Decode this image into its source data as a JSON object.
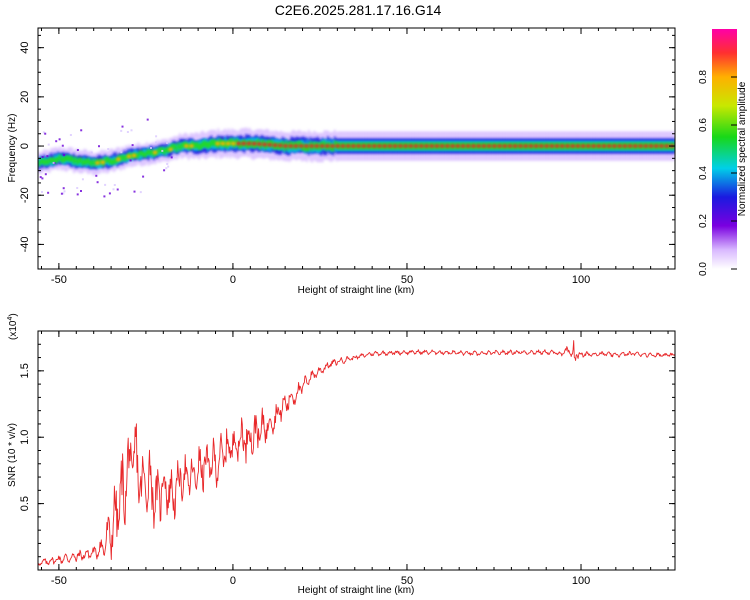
{
  "title": "C2E6.2025.281.17.16.G14",
  "colors": {
    "snr_line": "#e8282a",
    "spectral_core": "#e8282a",
    "spectral_mid": "#22d822",
    "spectral_low": "#1a1ae0",
    "spectral_fringe": "#c9a2ff",
    "axis": "#000000"
  },
  "chart_data": [
    {
      "type": "heatmap",
      "name": "spectrogram",
      "xlabel": "Height of straight line (km)",
      "ylabel": "Frequency (Hz)",
      "xlim": [
        -56,
        127
      ],
      "ylim": [
        -50,
        48
      ],
      "x_ticks": [
        -50,
        0,
        50,
        100
      ],
      "y_ticks": [
        -40,
        -20,
        0,
        20,
        40
      ],
      "grid": false,
      "colorbar": {
        "label": "Normalized spectral amplitude",
        "range": [
          0,
          1
        ],
        "ticks": [
          "0.0",
          "0.2",
          "0.4",
          "0.6",
          "0.8"
        ],
        "colormap": "rainbow (white-violet-blue-cyan-green-yellow-orange-red)"
      },
      "ridge": {
        "x": [
          -56,
          -50,
          -45,
          -40,
          -35,
          -30,
          -25,
          -20,
          -15,
          -10,
          -5,
          0,
          5,
          10,
          15,
          20,
          30,
          50,
          75,
          100,
          127
        ],
        "frequency": [
          -7,
          -5,
          -6,
          -7,
          -6,
          -4,
          -3,
          -2,
          0,
          0,
          1,
          1,
          1,
          0.5,
          0,
          0,
          0,
          0,
          0,
          0,
          0
        ],
        "amplitude": [
          0.45,
          0.5,
          0.55,
          0.5,
          0.5,
          0.45,
          0.45,
          0.5,
          0.6,
          0.75,
          0.85,
          0.9,
          0.95,
          0.95,
          0.95,
          1.0,
          1.0,
          1.0,
          1.0,
          1.0,
          1.0
        ]
      }
    },
    {
      "type": "line",
      "name": "snr",
      "xlabel": "Height of straight line (km)",
      "ylabel": "SNR (10 * v/v)",
      "y_multiplier_label": "(x10",
      "y_multiplier_exponent": "4",
      "y_multiplier_suffix": ")",
      "xlim": [
        -56,
        127
      ],
      "ylim": [
        0,
        1.8
      ],
      "x_ticks": [
        -50,
        0,
        50,
        100
      ],
      "y_ticks": [
        "0.5",
        "1.0",
        "1.5"
      ],
      "grid": false,
      "series": [
        {
          "x": [
            -56,
            -50,
            -45,
            -40,
            -37,
            -35,
            -32,
            -30,
            -28,
            -26,
            -24,
            -22,
            -20,
            -17,
            -15,
            -12,
            -10,
            -8,
            -6,
            -4,
            -2,
            0,
            2,
            4,
            6,
            8,
            10,
            12,
            15,
            18,
            20,
            22,
            25,
            28,
            30,
            35,
            40,
            50,
            60,
            70,
            80,
            90,
            95,
            97,
            98,
            99,
            100,
            105,
            110,
            115,
            120,
            127
          ],
          "y": [
            0.05,
            0.08,
            0.1,
            0.13,
            0.18,
            0.3,
            0.55,
            0.75,
            0.85,
            0.6,
            0.7,
            0.5,
            0.65,
            0.55,
            0.7,
            0.68,
            0.75,
            0.78,
            0.8,
            0.82,
            0.9,
            0.95,
            0.98,
            1.0,
            1.02,
            1.05,
            1.1,
            1.15,
            1.25,
            1.32,
            1.38,
            1.45,
            1.5,
            1.55,
            1.57,
            1.6,
            1.63,
            1.64,
            1.64,
            1.63,
            1.64,
            1.64,
            1.63,
            1.65,
            1.62,
            1.63,
            1.62,
            1.63,
            1.62,
            1.63,
            1.62,
            1.62
          ],
          "noise_amplitude": [
            0.03,
            0.04,
            0.05,
            0.05,
            0.12,
            0.25,
            0.35,
            0.4,
            0.35,
            0.3,
            0.3,
            0.25,
            0.25,
            0.2,
            0.2,
            0.2,
            0.2,
            0.2,
            0.2,
            0.2,
            0.2,
            0.2,
            0.22,
            0.22,
            0.2,
            0.18,
            0.15,
            0.12,
            0.1,
            0.08,
            0.07,
            0.05,
            0.04,
            0.03,
            0.03,
            0.02,
            0.02,
            0.02,
            0.02,
            0.02,
            0.02,
            0.02,
            0.03,
            0.1,
            0.15,
            0.08,
            0.03,
            0.02,
            0.02,
            0.02,
            0.02,
            0.02
          ]
        }
      ]
    }
  ]
}
